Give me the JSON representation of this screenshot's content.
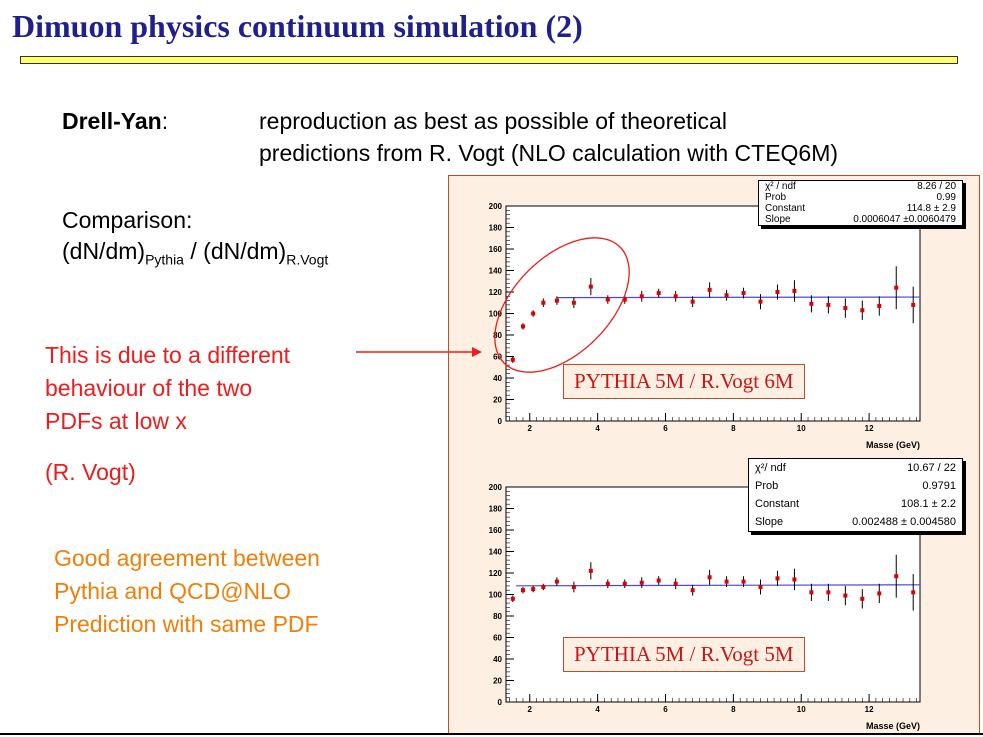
{
  "slide": {
    "title": "Dimuon physics continuum simulation (2)",
    "drell_yan_label": "Drell-Yan",
    "drell_yan_colon": ":",
    "drell_yan_line1": "reproduction as best as possible of theoretical",
    "drell_yan_line2": "predictions from R. Vogt (NLO calculation with CTEQ6M)",
    "comparison_label": "Comparison:",
    "ratio_prefix": "(dN/dm)",
    "ratio_sub1": "Pythia",
    "ratio_mid": " / (dN/dm)",
    "ratio_sub2": "R.Vogt",
    "red_note_line1": "This is due to a different",
    "red_note_line2": "behaviour of the two",
    "red_note_line3": "PDFs at low x",
    "red_note_ref": "(R. Vogt)",
    "orange_note_line1": "Good agreement between",
    "orange_note_line2": "Pythia and QCD@NLO",
    "orange_note_line3": "Prediction with same PDF"
  },
  "colors": {
    "title": "#1f1f8f",
    "title_bar": "#ffff66",
    "red_text": "#ee1c1c",
    "orange_text": "#f07f09",
    "panel_bg": "#fdefe1",
    "points": "#dd0000",
    "fit_line": "#4b4bcf"
  },
  "chart_data": [
    {
      "type": "scatter",
      "xlabel": "Masse (GeV)",
      "xlim": [
        1.3,
        13.5
      ],
      "ylim": [
        0,
        200
      ],
      "xticks": [
        2,
        4,
        6,
        8,
        10,
        12
      ],
      "yticks": [
        0,
        20,
        40,
        60,
        80,
        100,
        120,
        140,
        160,
        180,
        200
      ],
      "x": [
        1.5,
        1.8,
        2.1,
        2.4,
        2.8,
        3.3,
        3.8,
        4.3,
        4.8,
        5.3,
        5.8,
        6.3,
        6.8,
        7.3,
        7.8,
        8.3,
        8.8,
        9.3,
        9.8,
        10.3,
        10.8,
        11.3,
        11.8,
        12.3,
        12.8,
        13.3
      ],
      "y": [
        57,
        88,
        100,
        110,
        112,
        110,
        125,
        113,
        113,
        116,
        119,
        116,
        111,
        122,
        117,
        119,
        111,
        120,
        121,
        109,
        108,
        105,
        103,
        107,
        124,
        108
      ],
      "yerr": [
        3,
        3,
        3,
        4,
        4,
        5,
        8,
        4,
        4,
        5,
        4,
        5,
        5,
        7,
        5,
        5,
        7,
        7,
        10,
        8,
        8,
        9,
        9,
        9,
        20,
        17
      ],
      "fit_range": [
        2.8,
        13.5
      ],
      "fit_y": [
        114.8,
        115.3
      ],
      "stats": {
        "chi2_label": "χ² / ndf",
        "chi2_value": "8.26 / 20",
        "prob_label": "Prob",
        "prob_value": "0.99",
        "constant_label": "Constant",
        "constant_value": "114.8 ± 2.9",
        "slope_label": "Slope",
        "slope_value": "0.0006047 ±0.0060479"
      },
      "annotation": "PYTHIA 5M / R.Vogt 6M"
    },
    {
      "type": "scatter",
      "xlabel": "Masse (GeV)",
      "xlim": [
        1.3,
        13.5
      ],
      "ylim": [
        0,
        200
      ],
      "xticks": [
        2,
        4,
        6,
        8,
        10,
        12
      ],
      "yticks": [
        0,
        20,
        40,
        60,
        80,
        100,
        120,
        140,
        160,
        180,
        200
      ],
      "x": [
        1.5,
        1.8,
        2.1,
        2.4,
        2.8,
        3.3,
        3.8,
        4.3,
        4.8,
        5.3,
        5.8,
        6.3,
        6.8,
        7.3,
        7.8,
        8.3,
        8.8,
        9.3,
        9.8,
        10.3,
        10.8,
        11.3,
        11.8,
        12.3,
        12.8,
        13.3
      ],
      "y": [
        96,
        104,
        105,
        107,
        112,
        107,
        122,
        110,
        110,
        111,
        113,
        110,
        104,
        116,
        112,
        112,
        107,
        115,
        114,
        102,
        102,
        99,
        96,
        101,
        117,
        102
      ],
      "yerr": [
        3,
        3,
        3,
        3,
        4,
        5,
        8,
        4,
        4,
        5,
        4,
        5,
        5,
        7,
        5,
        5,
        7,
        7,
        10,
        8,
        8,
        9,
        9,
        9,
        20,
        17
      ],
      "fit_range": [
        1.6,
        13.5
      ],
      "fit_y": [
        108.1,
        109.0
      ],
      "stats": {
        "chi2_label": "χ²/ ndf",
        "chi2_value": "10.67 / 22",
        "prob_label": "Prob",
        "prob_value": "0.9791",
        "constant_label": "Constant",
        "constant_value": "108.1 ± 2.2",
        "slope_label": "Slope",
        "slope_value": "0.002488 ± 0.004580"
      },
      "annotation": "PYTHIA 5M / R.Vogt 5M"
    }
  ]
}
